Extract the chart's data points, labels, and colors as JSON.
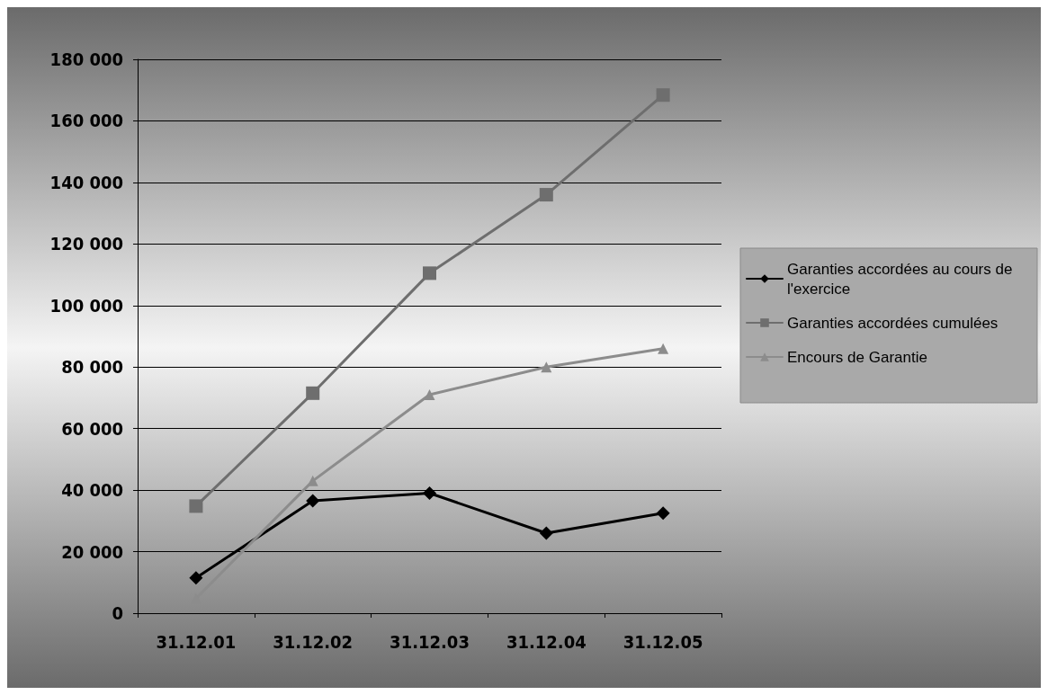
{
  "chart_data": {
    "type": "line",
    "categories": [
      "31.12.01",
      "31.12.02",
      "31.12.03",
      "31.12.04",
      "31.12.05"
    ],
    "series": [
      {
        "name": "Garanties accordées au cours de l'exercice",
        "color": "#000000",
        "marker": "diamond",
        "values": [
          11500,
          36500,
          39000,
          26000,
          32500
        ]
      },
      {
        "name": "Garanties accordées cumulées",
        "color": "#6e6e6e",
        "marker": "square",
        "values": [
          34800,
          71500,
          110500,
          136000,
          168400
        ]
      },
      {
        "name": "Encours de Garantie",
        "color": "#8c8c8c",
        "marker": "triangle",
        "values": [
          4800,
          43000,
          71000,
          80000,
          86000
        ]
      }
    ],
    "ylim": [
      0,
      180000
    ],
    "yticks": [
      {
        "value": 0,
        "label": "0"
      },
      {
        "value": 20000,
        "label": "20 000"
      },
      {
        "value": 40000,
        "label": "40 000"
      },
      {
        "value": 60000,
        "label": "60 000"
      },
      {
        "value": 80000,
        "label": "80 000"
      },
      {
        "value": 100000,
        "label": "100 000"
      },
      {
        "value": 120000,
        "label": "120 000"
      },
      {
        "value": 140000,
        "label": "140 000"
      },
      {
        "value": 160000,
        "label": "160 000"
      },
      {
        "value": 180000,
        "label": "180 000"
      }
    ],
    "grid": "y",
    "legend": "right",
    "line_style": "solid"
  }
}
